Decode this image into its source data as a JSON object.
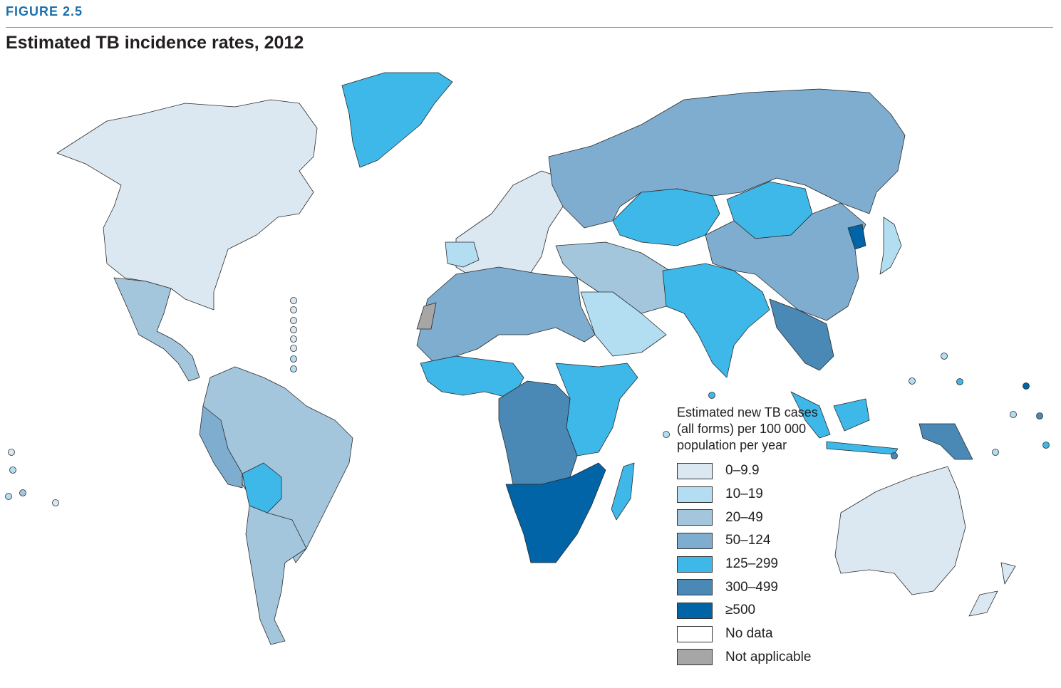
{
  "figure_label": "FIGURE 2.5",
  "title": "Estimated TB incidence rates, 2012",
  "legend": {
    "title": "Estimated new TB cases (all forms) per 100 000 population per year",
    "items": [
      {
        "label": "0–9.9",
        "color": "#dce8f1"
      },
      {
        "label": "10–19",
        "color": "#b3def2"
      },
      {
        "label": "20–49",
        "color": "#a3c6dc"
      },
      {
        "label": "50–124",
        "color": "#7eadcf"
      },
      {
        "label": "125–299",
        "color": "#3eb8e9"
      },
      {
        "label": "300–499",
        "color": "#4a88b6"
      },
      {
        "label": "≥500",
        "color": "#0064a6"
      },
      {
        "label": "No data",
        "color": "#ffffff"
      },
      {
        "label": "Not applicable",
        "color": "#a6a6a6"
      }
    ]
  },
  "map_data": {
    "type": "choropleth",
    "regions": [
      {
        "name": "Canada and USA",
        "class": "0–9.9"
      },
      {
        "name": "Western Europe",
        "class": "0–9.9"
      },
      {
        "name": "Australia",
        "class": "0–9.9"
      },
      {
        "name": "Greenland",
        "class": "125–299"
      },
      {
        "name": "Russian Federation",
        "class": "50–124"
      },
      {
        "name": "China",
        "class": "50–124"
      },
      {
        "name": "Mongolia",
        "class": "125–299"
      },
      {
        "name": "Kazakhstan",
        "class": "125–299"
      },
      {
        "name": "India",
        "class": "125–299"
      },
      {
        "name": "Brazil",
        "class": "20–49"
      },
      {
        "name": "Bolivia",
        "class": "125–299"
      },
      {
        "name": "Peru",
        "class": "50–124"
      },
      {
        "name": "Mexico",
        "class": "20–49"
      },
      {
        "name": "North Africa",
        "class": "50–124"
      },
      {
        "name": "Central Africa",
        "class": "300–499"
      },
      {
        "name": "Southern Africa",
        "class": "≥500"
      },
      {
        "name": "East Africa",
        "class": "125–299"
      },
      {
        "name": "Indonesia",
        "class": "125–299"
      },
      {
        "name": "Papua New Guinea",
        "class": "300–499"
      },
      {
        "name": "Western Sahara",
        "class": "Not applicable"
      }
    ]
  }
}
